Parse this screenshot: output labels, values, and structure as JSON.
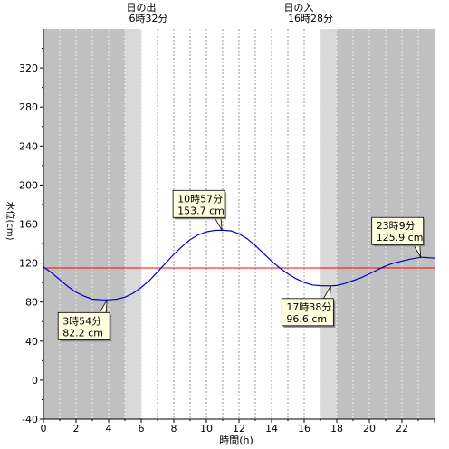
{
  "chart_data": {
    "type": "line",
    "xlabel": "時間(h)",
    "ylabel": "水位(cm)",
    "xlim": [
      0,
      24
    ],
    "ylim": [
      -40,
      360
    ],
    "x_ticks": [
      0,
      2,
      4,
      6,
      8,
      10,
      12,
      14,
      16,
      18,
      20,
      22
    ],
    "y_ticks": [
      -40,
      0,
      40,
      80,
      120,
      160,
      200,
      240,
      280,
      320
    ],
    "grid": "vertical-dashed",
    "reference_line": {
      "y": 115,
      "color": "#ff0000"
    },
    "series": [
      {
        "color": "#0000cc",
        "x": [
          0,
          0.5,
          1,
          1.5,
          2,
          2.5,
          3,
          3.5,
          3.9,
          4.5,
          5,
          5.5,
          6,
          6.5,
          7,
          7.5,
          8,
          8.5,
          9,
          9.5,
          10,
          10.5,
          10.95,
          11.5,
          12,
          12.5,
          13,
          13.5,
          14,
          14.5,
          15,
          15.5,
          16,
          16.5,
          17,
          17.63,
          18,
          18.5,
          19,
          19.5,
          20,
          20.5,
          21,
          21.5,
          22,
          22.5,
          23.15,
          23.5,
          24
        ],
        "y": [
          116,
          110,
          103,
          96,
          90,
          86,
          83,
          82.4,
          82.2,
          83,
          85,
          89,
          95,
          102,
          111,
          120,
          129,
          137,
          144,
          149,
          152,
          153.5,
          153.7,
          153,
          150,
          145,
          138,
          130,
          122,
          115,
          109,
          104,
          100,
          97.5,
          96.8,
          96.6,
          97,
          99,
          102,
          105,
          109,
          113,
          117,
          120,
          122,
          124,
          125.9,
          125.7,
          125
        ]
      }
    ],
    "annotations": [
      {
        "time": "3時54分",
        "level": "82.2 cm",
        "x": 3.9,
        "y": 82.2,
        "position": "below-left"
      },
      {
        "time": "10時57分",
        "level": "153.7 cm",
        "x": 10.95,
        "y": 153.7,
        "position": "above-left"
      },
      {
        "time": "17時38分",
        "level": "96.6 cm",
        "x": 17.63,
        "y": 96.6,
        "position": "below-left"
      },
      {
        "time": "23時9分",
        "level": "125.9 cm",
        "x": 23.15,
        "y": 125.9,
        "position": "above-left"
      }
    ],
    "sunrise": {
      "label": "日の出",
      "time": "6時32分",
      "hour": 6.533
    },
    "sunset": {
      "label": "日の入",
      "time": "16時28分",
      "hour": 16.467
    },
    "colors": {
      "night": "#c0c0c0",
      "twilight": "#d9d9d9",
      "day": "#ffffff",
      "line": "#0000cc",
      "reference": "#ff0000"
    }
  }
}
